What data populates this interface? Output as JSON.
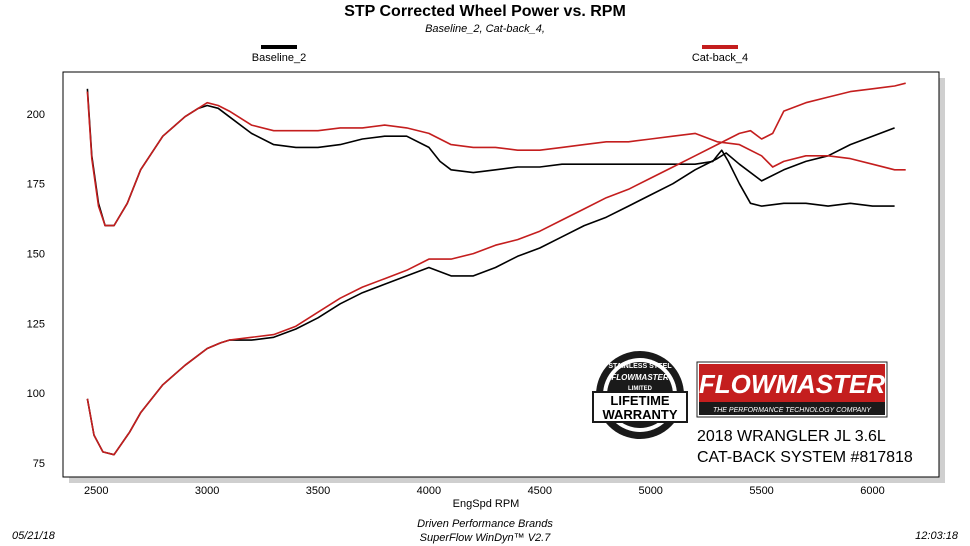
{
  "chart_data": {
    "type": "line",
    "title": "STP Corrected Wheel Power vs. RPM",
    "subtitle": "Baseline_2, Cat-back_4,",
    "xlabel": "EngSpd RPM",
    "ylabel": "",
    "xlim": [
      2350,
      6300
    ],
    "ylim": [
      70,
      215
    ],
    "x_ticks": [
      "2500",
      "3000",
      "3500",
      "4000",
      "4500",
      "5000",
      "5500",
      "6000"
    ],
    "y_ticks": [
      "200",
      "175",
      "150",
      "125",
      "100",
      "75"
    ],
    "grid": false,
    "legend_position": "top",
    "series": [
      {
        "name": "Baseline_2",
        "color": "#000000",
        "role": "power",
        "points": [
          [
            2460,
            209
          ],
          [
            2480,
            185
          ],
          [
            2510,
            168
          ],
          [
            2540,
            160
          ],
          [
            2580,
            160
          ],
          [
            2640,
            168
          ],
          [
            2700,
            180
          ],
          [
            2800,
            192
          ],
          [
            2900,
            199
          ],
          [
            2960,
            202
          ],
          [
            3000,
            203
          ],
          [
            3050,
            202
          ],
          [
            3100,
            199
          ],
          [
            3200,
            193
          ],
          [
            3300,
            189
          ],
          [
            3400,
            188
          ],
          [
            3500,
            188
          ],
          [
            3600,
            189
          ],
          [
            3700,
            191
          ],
          [
            3800,
            192
          ],
          [
            3900,
            192
          ],
          [
            4000,
            188
          ],
          [
            4050,
            183
          ],
          [
            4100,
            180
          ],
          [
            4200,
            179
          ],
          [
            4300,
            180
          ],
          [
            4400,
            181
          ],
          [
            4500,
            181
          ],
          [
            4600,
            182
          ],
          [
            4700,
            182
          ],
          [
            4800,
            182
          ],
          [
            4900,
            182
          ],
          [
            5000,
            182
          ],
          [
            5100,
            182
          ],
          [
            5200,
            182
          ],
          [
            5280,
            183
          ],
          [
            5300,
            185
          ],
          [
            5320,
            187
          ],
          [
            5350,
            183
          ],
          [
            5400,
            175
          ],
          [
            5450,
            168
          ],
          [
            5500,
            167
          ],
          [
            5600,
            168
          ],
          [
            5700,
            168
          ],
          [
            5800,
            167
          ],
          [
            5900,
            168
          ],
          [
            6000,
            167
          ],
          [
            6100,
            167
          ]
        ]
      },
      {
        "name": "Baseline_2",
        "color": "#000000",
        "role": "torque",
        "points": [
          [
            2460,
            98
          ],
          [
            2490,
            85
          ],
          [
            2530,
            79
          ],
          [
            2580,
            78
          ],
          [
            2650,
            86
          ],
          [
            2700,
            93
          ],
          [
            2800,
            103
          ],
          [
            2900,
            110
          ],
          [
            3000,
            116
          ],
          [
            3060,
            118
          ],
          [
            3100,
            119
          ],
          [
            3200,
            119
          ],
          [
            3300,
            120
          ],
          [
            3400,
            123
          ],
          [
            3500,
            127
          ],
          [
            3600,
            132
          ],
          [
            3700,
            136
          ],
          [
            3800,
            139
          ],
          [
            3900,
            142
          ],
          [
            4000,
            145
          ],
          [
            4100,
            142
          ],
          [
            4200,
            142
          ],
          [
            4300,
            145
          ],
          [
            4400,
            149
          ],
          [
            4500,
            152
          ],
          [
            4600,
            156
          ],
          [
            4700,
            160
          ],
          [
            4800,
            163
          ],
          [
            4900,
            167
          ],
          [
            5000,
            171
          ],
          [
            5100,
            175
          ],
          [
            5200,
            180
          ],
          [
            5300,
            184
          ],
          [
            5340,
            186
          ],
          [
            5400,
            182
          ],
          [
            5500,
            176
          ],
          [
            5600,
            180
          ],
          [
            5700,
            183
          ],
          [
            5800,
            185
          ],
          [
            5900,
            189
          ],
          [
            6000,
            192
          ],
          [
            6100,
            195
          ]
        ]
      },
      {
        "name": "Cat-back_4",
        "color": "#c41e1e",
        "role": "power",
        "points": [
          [
            2460,
            208
          ],
          [
            2480,
            184
          ],
          [
            2510,
            167
          ],
          [
            2540,
            160
          ],
          [
            2580,
            160
          ],
          [
            2640,
            168
          ],
          [
            2700,
            180
          ],
          [
            2800,
            192
          ],
          [
            2900,
            199
          ],
          [
            2960,
            202
          ],
          [
            3000,
            204
          ],
          [
            3050,
            203
          ],
          [
            3100,
            201
          ],
          [
            3200,
            196
          ],
          [
            3300,
            194
          ],
          [
            3400,
            194
          ],
          [
            3500,
            194
          ],
          [
            3600,
            195
          ],
          [
            3700,
            195
          ],
          [
            3800,
            196
          ],
          [
            3900,
            195
          ],
          [
            4000,
            193
          ],
          [
            4100,
            189
          ],
          [
            4200,
            188
          ],
          [
            4300,
            188
          ],
          [
            4400,
            187
          ],
          [
            4500,
            187
          ],
          [
            4600,
            188
          ],
          [
            4700,
            189
          ],
          [
            4800,
            190
          ],
          [
            4900,
            190
          ],
          [
            5000,
            191
          ],
          [
            5100,
            192
          ],
          [
            5200,
            193
          ],
          [
            5300,
            190
          ],
          [
            5400,
            189
          ],
          [
            5500,
            185
          ],
          [
            5550,
            181
          ],
          [
            5600,
            183
          ],
          [
            5700,
            185
          ],
          [
            5800,
            185
          ],
          [
            5900,
            184
          ],
          [
            6000,
            182
          ],
          [
            6100,
            180
          ],
          [
            6150,
            180
          ]
        ]
      },
      {
        "name": "Cat-back_4",
        "color": "#c41e1e",
        "role": "torque",
        "points": [
          [
            2460,
            98
          ],
          [
            2490,
            85
          ],
          [
            2530,
            79
          ],
          [
            2580,
            78
          ],
          [
            2650,
            86
          ],
          [
            2700,
            93
          ],
          [
            2800,
            103
          ],
          [
            2900,
            110
          ],
          [
            3000,
            116
          ],
          [
            3060,
            118
          ],
          [
            3100,
            119
          ],
          [
            3200,
            120
          ],
          [
            3300,
            121
          ],
          [
            3400,
            124
          ],
          [
            3500,
            129
          ],
          [
            3600,
            134
          ],
          [
            3700,
            138
          ],
          [
            3800,
            141
          ],
          [
            3900,
            144
          ],
          [
            4000,
            148
          ],
          [
            4100,
            148
          ],
          [
            4200,
            150
          ],
          [
            4300,
            153
          ],
          [
            4400,
            155
          ],
          [
            4500,
            158
          ],
          [
            4600,
            162
          ],
          [
            4700,
            166
          ],
          [
            4800,
            170
          ],
          [
            4900,
            173
          ],
          [
            5000,
            177
          ],
          [
            5100,
            181
          ],
          [
            5200,
            185
          ],
          [
            5300,
            189
          ],
          [
            5400,
            193
          ],
          [
            5450,
            194
          ],
          [
            5500,
            191
          ],
          [
            5550,
            193
          ],
          [
            5600,
            201
          ],
          [
            5700,
            204
          ],
          [
            5800,
            206
          ],
          [
            5900,
            208
          ],
          [
            6000,
            209
          ],
          [
            6100,
            210
          ],
          [
            6150,
            211
          ]
        ]
      }
    ]
  },
  "badges": {
    "lifetime_top": "STAINLESS STEEL",
    "lifetime_sub": "LIMITED",
    "lifetime_main_1": "LIFETIME",
    "lifetime_main_2": "WARRANTY",
    "lifetime_brand": "FLOWMASTER",
    "brand_logo": "FLOWMASTER",
    "brand_tagline": "THE PERFORMANCE TECHNOLOGY COMPANY",
    "vehicle_line_1": "2018 WRANGLER JL 3.6L",
    "vehicle_line_2": "CAT-BACK SYSTEM #817818"
  },
  "footer": {
    "date": "05/21/18",
    "company": "Driven Performance Brands",
    "software": "SuperFlow WinDyn™ V2.7",
    "time": "12:03:18"
  }
}
